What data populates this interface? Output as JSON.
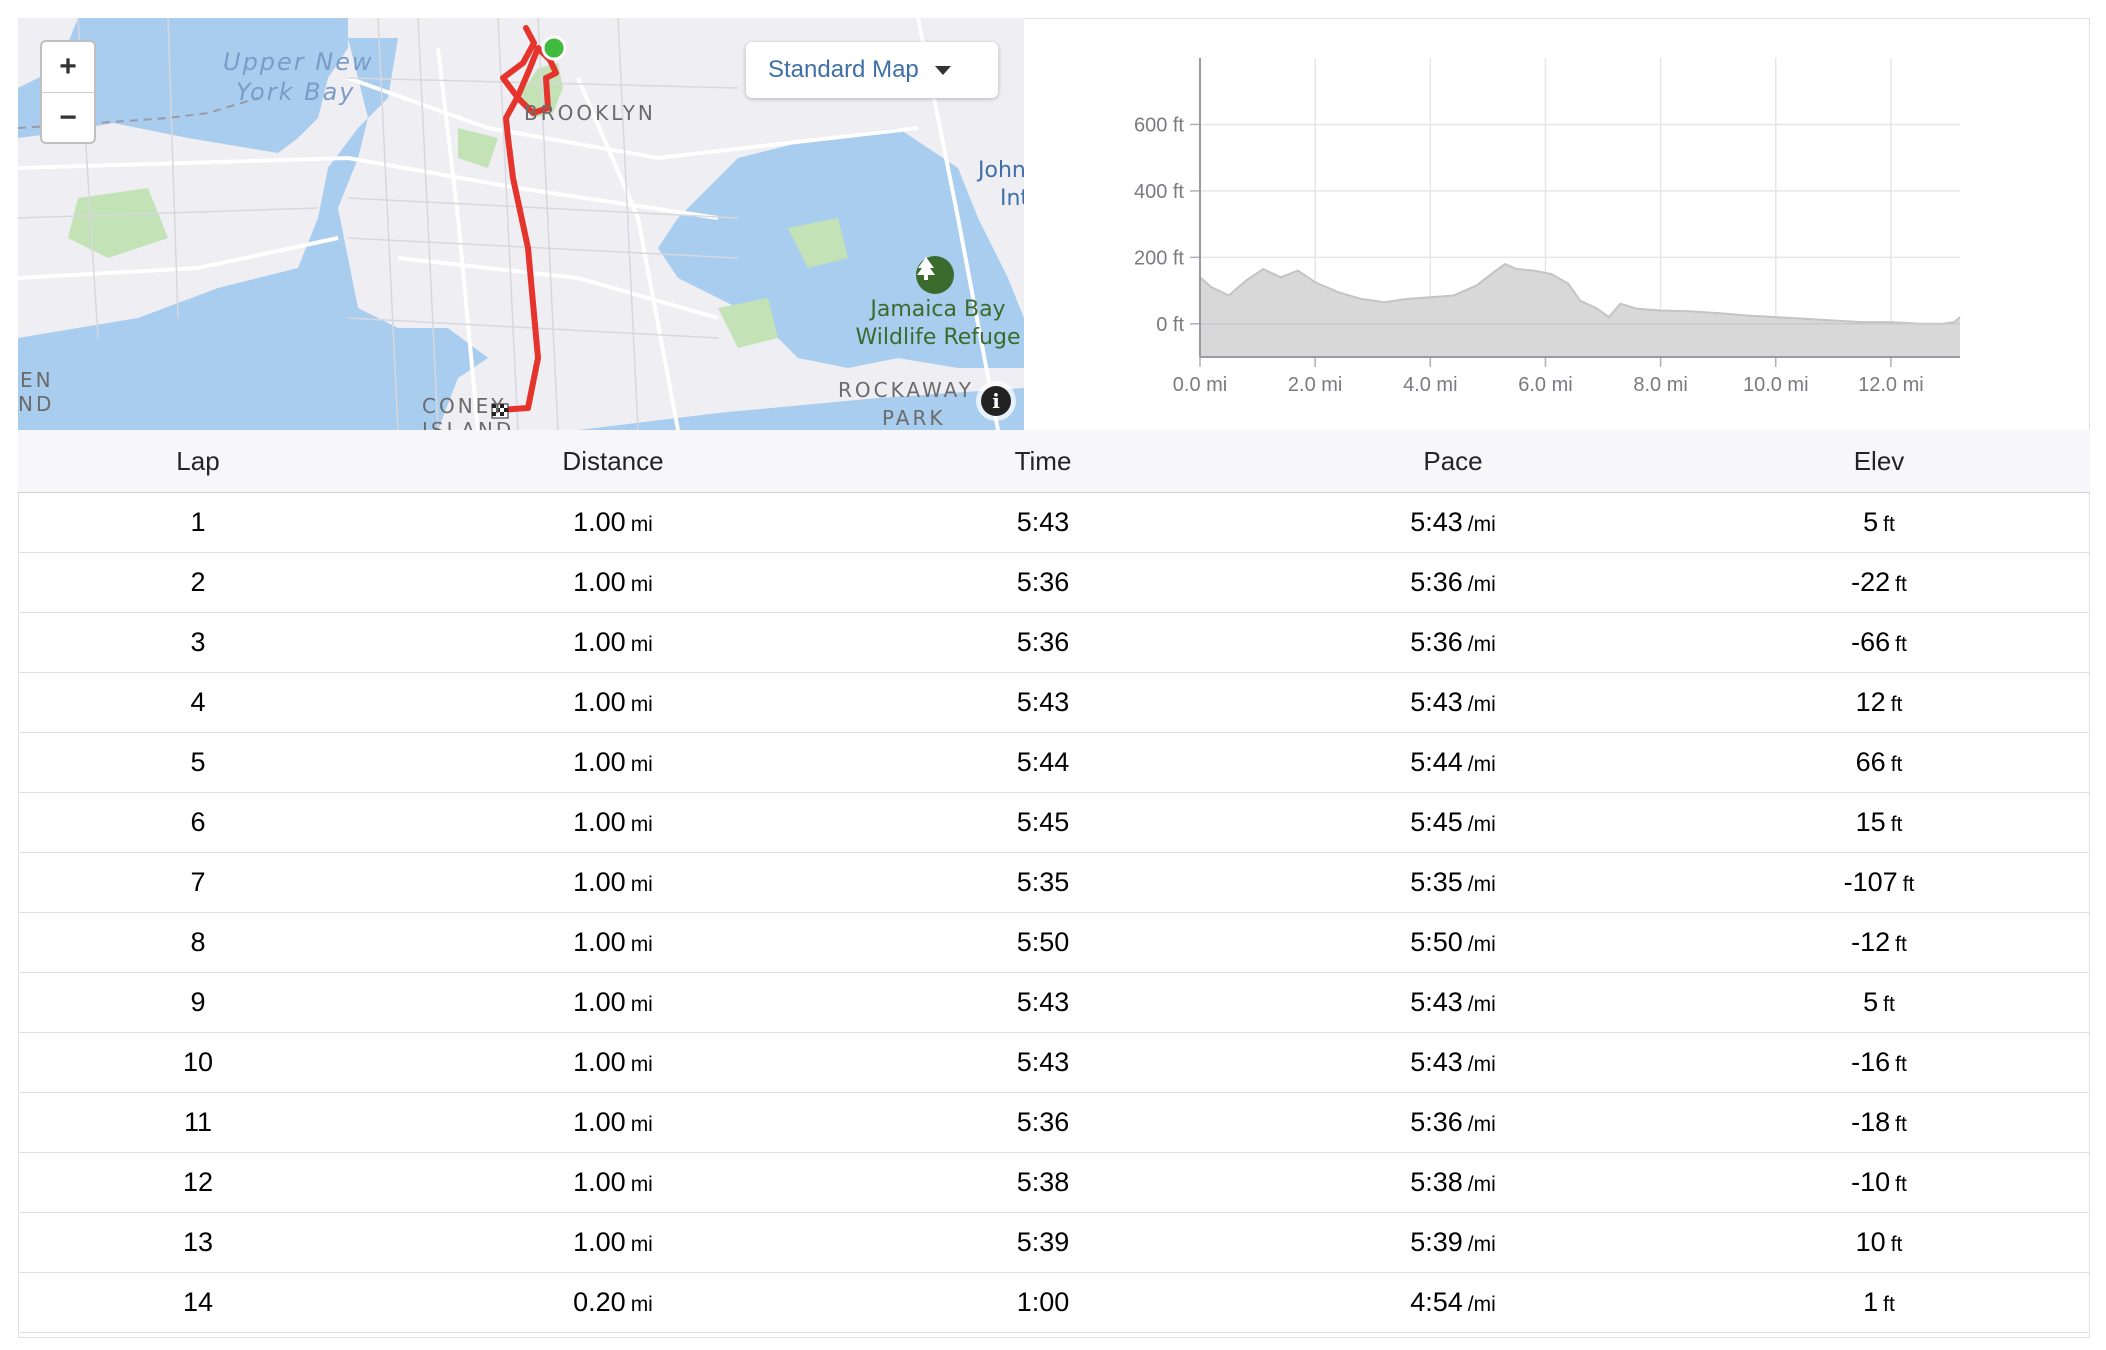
{
  "map": {
    "map_type": "Standard Map",
    "zoom_in": "+",
    "zoom_out": "−",
    "info": "i",
    "labels": {
      "upper": "Upper New",
      "york_bay": "York Bay",
      "brooklyn": "BROOKLYN",
      "john": "John",
      "int": "Int",
      "jamaica1": "Jamaica Bay",
      "jamaica2": "Wildlife Refuge",
      "rockaway": "ROCKAWAY",
      "park": "PARK",
      "coney": "CONEY",
      "island": "ISLAND",
      "en": "EN",
      "nd": "ND"
    },
    "colors": {
      "water": "#a9cdee",
      "land": "#eeeef3",
      "park": "#c3e3b7",
      "route": "#e5342c",
      "start": "#3fbb3f"
    }
  },
  "chart_data": {
    "type": "area",
    "x_unit": "mi",
    "y_unit": "ft",
    "xlim": [
      0,
      13.2
    ],
    "ylim": [
      -100,
      800
    ],
    "x_ticks": [
      "0.0 mi",
      "2.0 mi",
      "4.0 mi",
      "6.0 mi",
      "8.0 mi",
      "10.0 mi",
      "12.0 mi"
    ],
    "y_ticks": [
      "600 ft",
      "400 ft",
      "200 ft",
      "0 ft"
    ],
    "tick_x_values": [
      0,
      2,
      4,
      6,
      8,
      10,
      12
    ],
    "tick_y_values": [
      600,
      400,
      200,
      0
    ],
    "grid": true,
    "fill_color": "#d8d8d8",
    "line_color": "#c4c4c4",
    "x": [
      0,
      0.2,
      0.5,
      0.8,
      1.1,
      1.4,
      1.7,
      2.0,
      2.4,
      2.8,
      3.2,
      3.6,
      4.0,
      4.4,
      4.8,
      5.1,
      5.3,
      5.5,
      5.8,
      6.1,
      6.4,
      6.6,
      6.9,
      7.1,
      7.3,
      7.6,
      8.0,
      8.5,
      9.0,
      9.5,
      10.0,
      10.5,
      11.0,
      11.5,
      12.0,
      12.5,
      12.9,
      13.1,
      13.2
    ],
    "values": [
      140,
      110,
      85,
      130,
      165,
      140,
      160,
      125,
      95,
      75,
      65,
      75,
      80,
      85,
      115,
      155,
      180,
      165,
      160,
      150,
      120,
      70,
      45,
      20,
      60,
      45,
      40,
      38,
      32,
      25,
      20,
      15,
      10,
      5,
      5,
      0,
      0,
      5,
      20
    ]
  },
  "table": {
    "headers": {
      "lap": "Lap",
      "distance": "Distance",
      "time": "Time",
      "pace": "Pace",
      "elev": "Elev"
    },
    "rows": [
      {
        "lap": "1",
        "distance": "1.00",
        "dunit": "mi",
        "time": "5:43",
        "pace": "5:43",
        "punit": "/mi",
        "elev": "5",
        "eunit": "ft"
      },
      {
        "lap": "2",
        "distance": "1.00",
        "dunit": "mi",
        "time": "5:36",
        "pace": "5:36",
        "punit": "/mi",
        "elev": "-22",
        "eunit": "ft"
      },
      {
        "lap": "3",
        "distance": "1.00",
        "dunit": "mi",
        "time": "5:36",
        "pace": "5:36",
        "punit": "/mi",
        "elev": "-66",
        "eunit": "ft"
      },
      {
        "lap": "4",
        "distance": "1.00",
        "dunit": "mi",
        "time": "5:43",
        "pace": "5:43",
        "punit": "/mi",
        "elev": "12",
        "eunit": "ft"
      },
      {
        "lap": "5",
        "distance": "1.00",
        "dunit": "mi",
        "time": "5:44",
        "pace": "5:44",
        "punit": "/mi",
        "elev": "66",
        "eunit": "ft"
      },
      {
        "lap": "6",
        "distance": "1.00",
        "dunit": "mi",
        "time": "5:45",
        "pace": "5:45",
        "punit": "/mi",
        "elev": "15",
        "eunit": "ft"
      },
      {
        "lap": "7",
        "distance": "1.00",
        "dunit": "mi",
        "time": "5:35",
        "pace": "5:35",
        "punit": "/mi",
        "elev": "-107",
        "eunit": "ft"
      },
      {
        "lap": "8",
        "distance": "1.00",
        "dunit": "mi",
        "time": "5:50",
        "pace": "5:50",
        "punit": "/mi",
        "elev": "-12",
        "eunit": "ft"
      },
      {
        "lap": "9",
        "distance": "1.00",
        "dunit": "mi",
        "time": "5:43",
        "pace": "5:43",
        "punit": "/mi",
        "elev": "5",
        "eunit": "ft"
      },
      {
        "lap": "10",
        "distance": "1.00",
        "dunit": "mi",
        "time": "5:43",
        "pace": "5:43",
        "punit": "/mi",
        "elev": "-16",
        "eunit": "ft"
      },
      {
        "lap": "11",
        "distance": "1.00",
        "dunit": "mi",
        "time": "5:36",
        "pace": "5:36",
        "punit": "/mi",
        "elev": "-18",
        "eunit": "ft"
      },
      {
        "lap": "12",
        "distance": "1.00",
        "dunit": "mi",
        "time": "5:38",
        "pace": "5:38",
        "punit": "/mi",
        "elev": "-10",
        "eunit": "ft"
      },
      {
        "lap": "13",
        "distance": "1.00",
        "dunit": "mi",
        "time": "5:39",
        "pace": "5:39",
        "punit": "/mi",
        "elev": "10",
        "eunit": "ft"
      },
      {
        "lap": "14",
        "distance": "0.20",
        "dunit": "mi",
        "time": "1:00",
        "pace": "4:54",
        "punit": "/mi",
        "elev": "1",
        "eunit": "ft"
      }
    ]
  }
}
